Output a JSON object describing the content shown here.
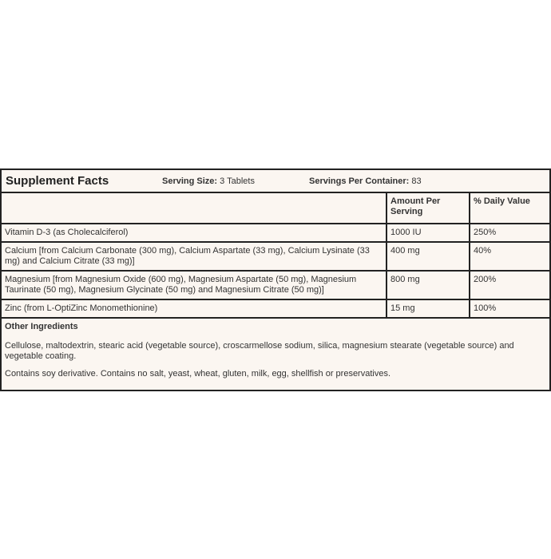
{
  "title": "Supplement Facts",
  "serving_size": {
    "label": "Serving Size:",
    "value": "3 Tablets"
  },
  "servings_per_container": {
    "label": "Servings Per Container:",
    "value": "83"
  },
  "columns": [
    "",
    "Amount Per Serving",
    "% Daily Value"
  ],
  "rows": [
    {
      "name": "Vitamin D-3 (as Cholecalciferol)",
      "amount": "1000 IU",
      "dv": "250%"
    },
    {
      "name": "Calcium [from Calcium Carbonate (300 mg), Calcium Aspartate (33 mg), Calcium Lysinate (33 mg) and Calcium Citrate (33 mg)]",
      "amount": "400 mg",
      "dv": "40%"
    },
    {
      "name": "Magnesium [from Magnesium Oxide (600 mg), Magnesium Aspartate (50 mg), Magnesium Taurinate (50 mg), Magnesium Glycinate (50 mg) and Magnesium Citrate (50 mg)]",
      "amount": "800 mg",
      "dv": "200%"
    },
    {
      "name": "Zinc (from L-OptiZinc Monomethionine)",
      "amount": "15 mg",
      "dv": "100%"
    }
  ],
  "other": {
    "heading": "Other Ingredients",
    "ingredients": "Cellulose, maltodextrin, stearic acid (vegetable source), croscarmellose sodium, silica, magnesium stearate (vegetable source) and vegetable coating.",
    "note": "Contains soy derivative. Contains no salt, yeast, wheat, gluten, milk, egg, shellfish or preservatives."
  }
}
